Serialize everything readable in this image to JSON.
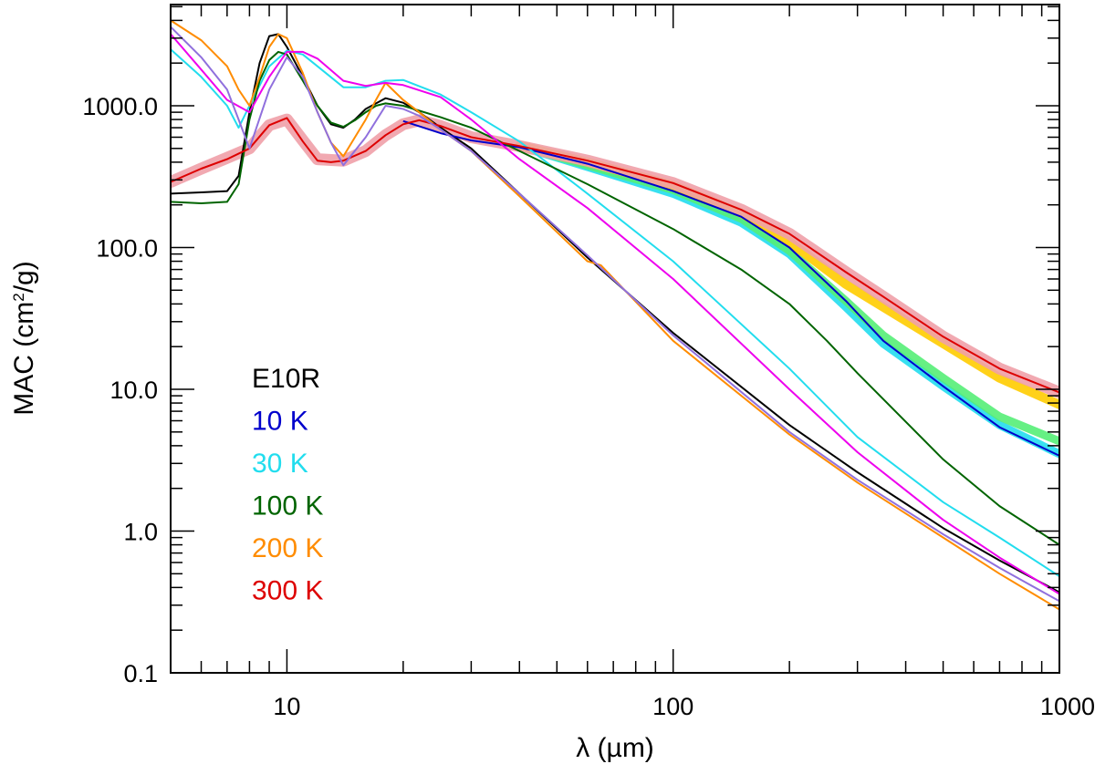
{
  "chart_data": {
    "type": "line",
    "xscale": "log",
    "yscale": "log",
    "xlabel": "λ (µm)",
    "ylabel_main": "MAC (cm",
    "ylabel_sup": "2",
    "ylabel_end": "/g)",
    "xlim": [
      5,
      1000
    ],
    "ylim": [
      0.1,
      5000
    ],
    "xticks": [
      {
        "value": 10,
        "label": "10"
      },
      {
        "value": 100,
        "label": "100"
      },
      {
        "value": 1000,
        "label": "1000"
      }
    ],
    "yticks": [
      {
        "value": 0.1,
        "label": "0.1"
      },
      {
        "value": 1,
        "label": "1.0"
      },
      {
        "value": 10,
        "label": "10.0"
      },
      {
        "value": 100,
        "label": "100.0"
      },
      {
        "value": 1000,
        "label": "1000.0"
      }
    ],
    "legend": [
      {
        "label": "E10R",
        "color": "#000000"
      },
      {
        "label": "10 K",
        "color": "#0000cc"
      },
      {
        "label": "30 K",
        "color": "#22ddee"
      },
      {
        "label": "100 K",
        "color": "#006400"
      },
      {
        "label": "200 K",
        "color": "#ff8c00"
      },
      {
        "label": "300 K",
        "color": "#dd0000"
      }
    ],
    "bands": [
      {
        "name": "30 K",
        "color": "#22ddee",
        "width": 9,
        "x": [
          40,
          60,
          100,
          150,
          200,
          280,
          350,
          500,
          700,
          1000
        ],
        "y": [
          520,
          370,
          240,
          150,
          90,
          38,
          21,
          10.5,
          5.6,
          3.5
        ]
      },
      {
        "name": "100 K",
        "color": "#55ee77",
        "width": 9,
        "x": [
          40,
          60,
          100,
          150,
          200,
          280,
          350,
          500,
          700,
          1000
        ],
        "y": [
          520,
          380,
          255,
          160,
          95,
          42,
          24,
          12,
          6.4,
          4.3
        ]
      },
      {
        "name": "200 K",
        "color": "#ffcc00",
        "width": 10,
        "x": [
          40,
          60,
          100,
          150,
          200,
          280,
          350,
          500,
          700,
          1000
        ],
        "y": [
          525,
          400,
          275,
          175,
          110,
          55,
          38,
          21,
          12,
          7.8
        ]
      },
      {
        "name": "300 K",
        "color": "#f0a0a8",
        "width": 13,
        "x": [
          5,
          6,
          8,
          9,
          10,
          11,
          12,
          14,
          16,
          18,
          20,
          22,
          25,
          30,
          40,
          60,
          100,
          150,
          200,
          280,
          350,
          500,
          700,
          1000
        ],
        "y": [
          290,
          360,
          500,
          730,
          800,
          570,
          420,
          410,
          480,
          620,
          740,
          790,
          720,
          600,
          520,
          410,
          285,
          185,
          125,
          67,
          45,
          23.5,
          14,
          9.5
        ]
      }
    ],
    "series": [
      {
        "name": "E10R",
        "color": "#000000",
        "width": 2,
        "x": [
          5,
          6,
          7,
          7.5,
          8,
          8.5,
          9,
          9.5,
          10,
          11,
          12,
          13,
          14,
          15,
          16,
          18,
          20,
          22,
          25,
          30,
          40,
          60,
          100,
          200,
          300,
          500,
          700,
          1000
        ],
        "y": [
          240,
          245,
          250,
          320,
          900,
          2000,
          3100,
          3200,
          2600,
          1600,
          1000,
          740,
          700,
          800,
          950,
          1130,
          1050,
          900,
          700,
          500,
          240,
          85,
          25,
          5.6,
          2.6,
          1.05,
          0.62,
          0.37
        ]
      },
      {
        "name": "10 K",
        "color": "#0000cc",
        "width": 2,
        "x": [
          20,
          25,
          30,
          40,
          60,
          100,
          150,
          200,
          280,
          350,
          500,
          700,
          1000
        ],
        "y": [
          780,
          640,
          570,
          510,
          390,
          250,
          165,
          100,
          42,
          22,
          10.5,
          5.4,
          3.4
        ]
      },
      {
        "name": "30 K",
        "color": "#22ddee",
        "width": 2,
        "x": [
          5,
          6,
          7,
          7.5,
          8,
          9,
          10,
          11,
          12,
          14,
          16,
          18,
          20,
          25,
          30,
          40,
          60,
          100,
          200,
          300,
          500,
          700,
          1000
        ],
        "y": [
          2500,
          1600,
          1000,
          700,
          1000,
          1900,
          2450,
          2300,
          1900,
          1350,
          1350,
          1500,
          1520,
          1200,
          900,
          560,
          240,
          80,
          14,
          4.6,
          1.6,
          0.9,
          0.48
        ]
      },
      {
        "name": "100 K",
        "color": "#006400",
        "width": 2,
        "x": [
          5,
          6,
          7,
          7.5,
          8,
          8.5,
          9,
          9.5,
          10,
          11,
          12,
          13,
          14,
          15,
          16,
          17,
          18,
          20,
          25,
          30,
          40,
          60,
          100,
          150,
          200,
          250,
          300,
          500,
          700,
          1000
        ],
        "y": [
          210,
          205,
          210,
          280,
          800,
          1500,
          2100,
          2400,
          2300,
          1500,
          1000,
          760,
          710,
          790,
          900,
          1000,
          1040,
          1000,
          830,
          700,
          480,
          280,
          135,
          70,
          40,
          22,
          13,
          3.2,
          1.5,
          0.8
        ]
      },
      {
        "name": "200 K",
        "color": "#ff8c00",
        "width": 2,
        "x": [
          5,
          6,
          7,
          7.5,
          8,
          8.5,
          9,
          9.5,
          10,
          11,
          12,
          13,
          14,
          15,
          16,
          17,
          18,
          20,
          22,
          25,
          30,
          40,
          60,
          65,
          100,
          200,
          300,
          500,
          700,
          1000
        ],
        "y": [
          4000,
          2900,
          1900,
          1300,
          1000,
          1600,
          2600,
          3200,
          3000,
          1700,
          900,
          550,
          440,
          600,
          800,
          1100,
          1450,
          1100,
          900,
          680,
          480,
          230,
          80,
          75,
          22,
          4.8,
          2.2,
          0.9,
          0.5,
          0.28
        ]
      },
      {
        "name": "300 K",
        "color": "#dd0000",
        "width": 2,
        "x": [
          5,
          6,
          7,
          8,
          9,
          10,
          11,
          12,
          13,
          14,
          16,
          18,
          20,
          22,
          25,
          30,
          40,
          60,
          100,
          150,
          200,
          280,
          350,
          500,
          700,
          1000
        ],
        "y": [
          290,
          360,
          420,
          500,
          730,
          820,
          560,
          410,
          400,
          410,
          480,
          620,
          740,
          790,
          720,
          600,
          520,
          410,
          285,
          185,
          125,
          67,
          45,
          23.5,
          14,
          9.5
        ]
      },
      {
        "name": "magenta",
        "color": "#ee00ee",
        "width": 2,
        "x": [
          5,
          6,
          7,
          8,
          9,
          10,
          11,
          12,
          14,
          16,
          18,
          20,
          25,
          30,
          40,
          60,
          100,
          200,
          300,
          500,
          700,
          1000
        ],
        "y": [
          3200,
          1800,
          1100,
          900,
          1600,
          2400,
          2400,
          2150,
          1500,
          1380,
          1450,
          1400,
          1150,
          800,
          420,
          190,
          60,
          10,
          3.6,
          1.2,
          0.65,
          0.36
        ]
      },
      {
        "name": "purple",
        "color": "#9070dd",
        "width": 2,
        "x": [
          5,
          6,
          7,
          7.5,
          8,
          9,
          10,
          11,
          12,
          13,
          14,
          16,
          18,
          20,
          22,
          25,
          30,
          40,
          60,
          100,
          200,
          300,
          500,
          700,
          1000
        ],
        "y": [
          3600,
          2200,
          1300,
          800,
          500,
          1300,
          2200,
          1600,
          900,
          550,
          380,
          600,
          1000,
          950,
          850,
          680,
          480,
          240,
          88,
          24,
          5,
          2.3,
          0.95,
          0.55,
          0.32
        ]
      }
    ]
  }
}
